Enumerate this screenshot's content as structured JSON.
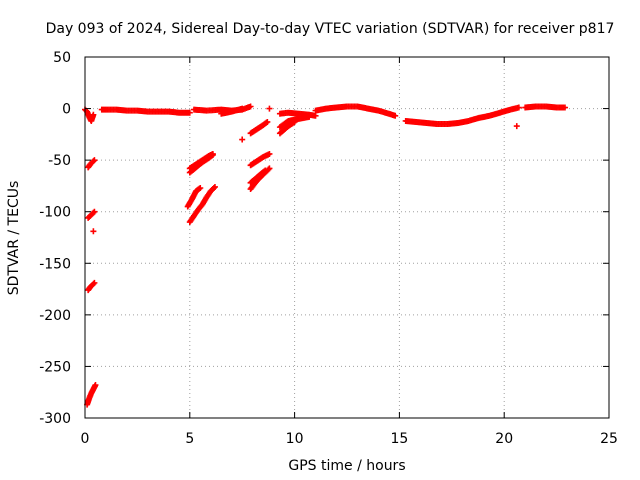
{
  "chart_data": {
    "type": "scatter",
    "title": "Day 093 of 2024, Sidereal Day-to-day VTEC variation (SDTVAR) for receiver p817",
    "xlabel": "GPS time / hours",
    "ylabel": "SDTVAR / TECUs",
    "xlim": [
      0,
      25
    ],
    "ylim": [
      -300,
      50
    ],
    "xticks": [
      0,
      5,
      10,
      15,
      20,
      25
    ],
    "yticks": [
      50,
      0,
      -50,
      -100,
      -150,
      -200,
      -250,
      -300
    ],
    "grid": true,
    "marker": "+",
    "series": [
      {
        "name": "SDTVAR",
        "color": "#ff0000",
        "segments": [
          [
            [
              0.0,
              -1
            ],
            [
              0.1,
              -3
            ],
            [
              0.2,
              -8
            ],
            [
              0.3,
              -12
            ],
            [
              0.4,
              -6
            ]
          ],
          [
            [
              0.15,
              -57
            ],
            [
              0.25,
              -54
            ],
            [
              0.35,
              -52
            ],
            [
              0.45,
              -50
            ]
          ],
          [
            [
              0.15,
              -106
            ],
            [
              0.25,
              -104
            ],
            [
              0.35,
              -102
            ],
            [
              0.45,
              -100
            ]
          ],
          [
            [
              0.4,
              -119
            ]
          ],
          [
            [
              0.15,
              -176
            ],
            [
              0.25,
              -173
            ],
            [
              0.35,
              -171
            ],
            [
              0.45,
              -169
            ]
          ],
          [
            [
              0.1,
              -287
            ],
            [
              0.2,
              -281
            ],
            [
              0.3,
              -276
            ],
            [
              0.4,
              -272
            ],
            [
              0.5,
              -268
            ]
          ],
          [
            [
              0.8,
              -1
            ],
            [
              1.5,
              -1
            ],
            [
              2.0,
              -2
            ],
            [
              2.5,
              -2
            ],
            [
              3.0,
              -3
            ],
            [
              3.5,
              -3
            ],
            [
              4.0,
              -3
            ],
            [
              4.5,
              -4
            ],
            [
              5.0,
              -4
            ]
          ],
          [
            [
              5.0,
              -58
            ],
            [
              5.3,
              -54
            ],
            [
              5.6,
              -50
            ],
            [
              5.9,
              -46
            ],
            [
              6.1,
              -44
            ]
          ],
          [
            [
              5.0,
              -62
            ],
            [
              5.3,
              -57
            ],
            [
              5.6,
              -52
            ],
            [
              5.9,
              -48
            ],
            [
              6.1,
              -45
            ]
          ],
          [
            [
              4.9,
              -95
            ],
            [
              5.1,
              -88
            ],
            [
              5.3,
              -80
            ],
            [
              5.5,
              -77
            ]
          ],
          [
            [
              5.0,
              -110
            ],
            [
              5.2,
              -104
            ],
            [
              5.4,
              -98
            ],
            [
              5.6,
              -93
            ],
            [
              5.8,
              -86
            ],
            [
              6.0,
              -80
            ],
            [
              6.2,
              -76
            ]
          ],
          [
            [
              5.2,
              -1
            ],
            [
              5.8,
              -2
            ],
            [
              6.5,
              -1
            ],
            [
              7.0,
              -2
            ],
            [
              7.5,
              -1
            ],
            [
              7.9,
              2
            ]
          ],
          [
            [
              6.5,
              -5
            ],
            [
              7.0,
              -3
            ],
            [
              7.5,
              0
            ]
          ],
          [
            [
              7.5,
              -30
            ]
          ],
          [
            [
              7.9,
              -24
            ],
            [
              8.2,
              -20
            ],
            [
              8.5,
              -16
            ],
            [
              8.7,
              -13
            ]
          ],
          [
            [
              7.9,
              -55
            ],
            [
              8.2,
              -51
            ],
            [
              8.5,
              -47
            ],
            [
              8.8,
              -44
            ]
          ],
          [
            [
              7.9,
              -78
            ],
            [
              8.2,
              -70
            ],
            [
              8.5,
              -64
            ],
            [
              8.8,
              -58
            ]
          ],
          [
            [
              7.9,
              -72
            ],
            [
              8.3,
              -65
            ],
            [
              8.6,
              -60
            ]
          ],
          [
            [
              8.8,
              0
            ]
          ],
          [
            [
              9.3,
              -5
            ],
            [
              9.7,
              -4
            ],
            [
              10.2,
              -5
            ],
            [
              10.7,
              -6
            ],
            [
              11.0,
              -7
            ]
          ],
          [
            [
              9.3,
              -18
            ],
            [
              9.7,
              -12
            ],
            [
              10.2,
              -10
            ],
            [
              10.7,
              -8
            ]
          ],
          [
            [
              9.3,
              -24
            ],
            [
              9.7,
              -17
            ],
            [
              10.0,
              -13
            ]
          ],
          [
            [
              11.0,
              -2
            ],
            [
              11.5,
              0
            ],
            [
              12.0,
              1
            ],
            [
              12.5,
              2
            ],
            [
              13.0,
              2
            ],
            [
              13.5,
              0
            ],
            [
              14.0,
              -2
            ],
            [
              14.5,
              -5
            ],
            [
              14.8,
              -7
            ]
          ],
          [
            [
              15.3,
              -12
            ],
            [
              15.8,
              -13
            ],
            [
              16.3,
              -14
            ],
            [
              16.8,
              -15
            ],
            [
              17.3,
              -15
            ],
            [
              17.8,
              -14
            ],
            [
              18.3,
              -12
            ],
            [
              18.8,
              -9
            ],
            [
              19.3,
              -7
            ],
            [
              19.8,
              -4
            ],
            [
              20.3,
              -1
            ],
            [
              20.7,
              1
            ]
          ],
          [
            [
              20.6,
              -17
            ]
          ],
          [
            [
              21.0,
              1
            ],
            [
              21.5,
              2
            ],
            [
              22.0,
              2
            ],
            [
              22.5,
              1
            ],
            [
              22.9,
              1
            ]
          ]
        ]
      }
    ]
  }
}
